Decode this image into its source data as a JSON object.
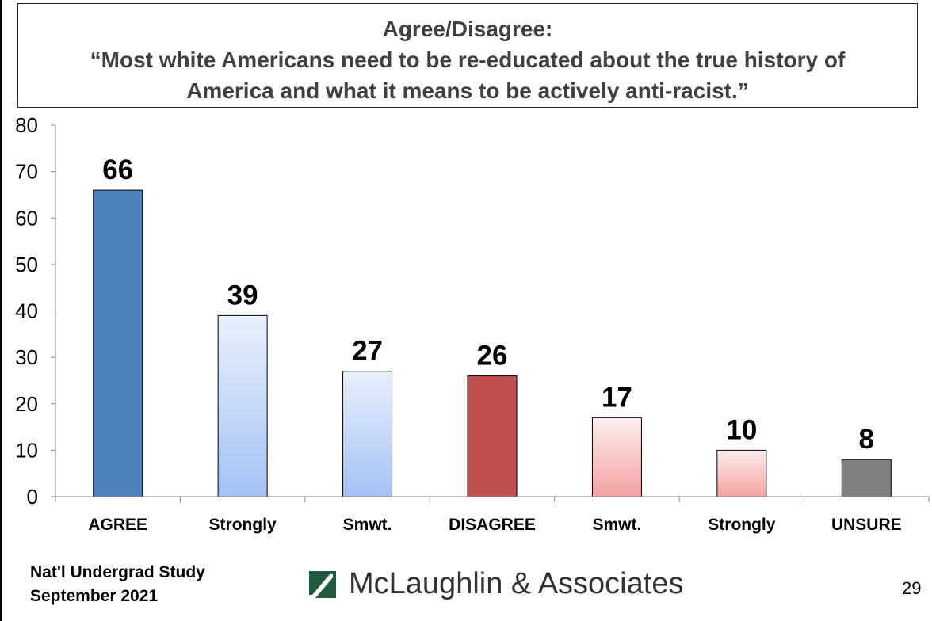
{
  "header": {
    "line1": "Agree/Disagree:",
    "line2": "“Most white Americans need to be re-educated about the true history of",
    "line3": "America and what it means to be actively anti-racist.”"
  },
  "chart_data": {
    "type": "bar",
    "title": "Agree/Disagree: “Most white Americans need to be re-educated about the true history of America and what it means to be actively anti-racist.”",
    "categories": [
      "AGREE",
      "Strongly",
      "Smwt.",
      "DISAGREE",
      "Smwt.",
      "Strongly",
      "UNSURE"
    ],
    "values": [
      66,
      39,
      27,
      26,
      17,
      10,
      8
    ],
    "bar_colors": [
      "#4F81BD",
      "light-blue-gradient",
      "light-blue-gradient",
      "#C0504D",
      "light-red-gradient",
      "light-red-gradient",
      "#808080"
    ],
    "ylim": [
      0,
      80
    ],
    "yticks": [
      0,
      10,
      20,
      30,
      40,
      50,
      60,
      70,
      80
    ],
    "xlabel": "",
    "ylabel": "",
    "grid": false,
    "data_labels": true
  },
  "footer": {
    "study_line1": "Nat'l Undergrad Study",
    "study_line2": "September 2021",
    "company": "McLaughlin & Associates",
    "page_number": "29"
  },
  "colors": {
    "agree": "#4F81BD",
    "disagree": "#C0504D",
    "unsure": "#808080"
  }
}
